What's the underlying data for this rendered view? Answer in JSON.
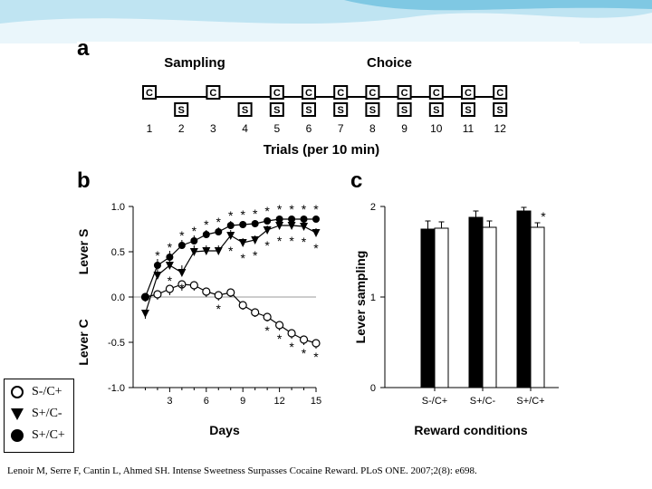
{
  "colors": {
    "banner_light": "#eaf6fb",
    "banner_mid": "#bfe4f2",
    "banner_dark": "#7fc8e3"
  },
  "panel_a": {
    "letter": "a",
    "sampling_label": "Sampling",
    "choice_label": "Choice",
    "xlabel": "Trials (per 10 min)",
    "trials": [
      {
        "n": "1",
        "box": "C"
      },
      {
        "n": "2",
        "box": "S"
      },
      {
        "n": "3",
        "box": "C"
      },
      {
        "n": "4",
        "box": "S"
      },
      {
        "n": "5",
        "box": "CS"
      },
      {
        "n": "6",
        "box": "CS"
      },
      {
        "n": "7",
        "box": "CS"
      },
      {
        "n": "8",
        "box": "CS"
      },
      {
        "n": "9",
        "box": "CS"
      },
      {
        "n": "10",
        "box": "CS"
      },
      {
        "n": "11",
        "box": "CS"
      },
      {
        "n": "12",
        "box": "CS"
      }
    ],
    "box_c": "C",
    "box_s": "S"
  },
  "chart_data": [
    {
      "type": "line",
      "panel": "b",
      "title": "",
      "xlabel": "Days",
      "ylabel_top": "Lever S",
      "ylabel_bottom": "Lever C",
      "xlim": [
        0,
        15
      ],
      "ylim": [
        -1.0,
        1.0
      ],
      "xticks": [
        "3",
        "6",
        "9",
        "12",
        "15"
      ],
      "yticks": [
        "1.0",
        "0.5",
        "0.0",
        "-0.5",
        "-1.0"
      ],
      "x": [
        1,
        2,
        3,
        4,
        5,
        6,
        7,
        8,
        9,
        10,
        11,
        12,
        13,
        14,
        15
      ],
      "series": [
        {
          "name": "S+/C+",
          "marker": "filled-circle",
          "values": [
            0.0,
            0.35,
            0.44,
            0.57,
            0.62,
            0.69,
            0.72,
            0.79,
            0.8,
            0.81,
            0.84,
            0.86,
            0.86,
            0.86,
            0.86
          ],
          "errors": [
            0.05,
            0.07,
            0.07,
            0.06,
            0.06,
            0.05,
            0.05,
            0.05,
            0.04,
            0.04,
            0.04,
            0.04,
            0.04,
            0.04,
            0.04
          ],
          "stars": [
            0,
            1,
            1,
            1,
            1,
            1,
            1,
            1,
            1,
            1,
            1,
            1,
            1,
            1,
            1
          ]
        },
        {
          "name": "S+/C-",
          "marker": "filled-triangle-down",
          "values": [
            -0.18,
            0.24,
            0.35,
            0.27,
            0.5,
            0.51,
            0.51,
            0.68,
            0.6,
            0.63,
            0.74,
            0.79,
            0.79,
            0.78,
            0.71
          ],
          "errors": [
            0.06,
            0.07,
            0.07,
            0.08,
            0.07,
            0.06,
            0.06,
            0.06,
            0.05,
            0.05,
            0.05,
            0.05,
            0.05,
            0.05,
            0.05
          ],
          "stars": [
            0,
            0,
            1,
            1,
            0,
            0,
            0,
            1,
            1,
            1,
            1,
            1,
            1,
            1,
            1
          ]
        },
        {
          "name": "S-/C+",
          "marker": "open-circle",
          "values": [
            0.0,
            0.03,
            0.09,
            0.14,
            0.13,
            0.06,
            0.02,
            0.05,
            -0.09,
            -0.17,
            -0.22,
            -0.31,
            -0.4,
            -0.47,
            -0.51
          ],
          "errors": [
            0.05,
            0.06,
            0.07,
            0.07,
            0.06,
            0.06,
            0.06,
            0.05,
            0.05,
            0.05,
            0.05,
            0.06,
            0.06,
            0.06,
            0.06
          ],
          "stars": [
            0,
            0,
            0,
            0,
            0,
            0,
            1,
            0,
            0,
            0,
            1,
            1,
            1,
            1,
            1
          ]
        }
      ]
    },
    {
      "type": "bar",
      "panel": "c",
      "title": "",
      "xlabel": "Reward conditions",
      "ylabel": "Lever sampling",
      "ylim": [
        0,
        2
      ],
      "yticks": [
        "2",
        "1",
        "0"
      ],
      "categories": [
        "S-/C+",
        "S+/C-",
        "S+/C+"
      ],
      "series": [
        {
          "name": "Lever S",
          "color": "#000000",
          "values": [
            1.75,
            1.88,
            1.95
          ],
          "errors": [
            0.09,
            0.07,
            0.04
          ]
        },
        {
          "name": "Lever C",
          "color": "#ffffff",
          "values": [
            1.76,
            1.77,
            1.77
          ],
          "errors": [
            0.07,
            0.07,
            0.05
          ]
        }
      ],
      "annotation": "*"
    }
  ],
  "panel_b_letter": "b",
  "panel_c_letter": "c",
  "star_symbol": "*",
  "legend": [
    {
      "label": "S-/C+",
      "marker": "open-circle"
    },
    {
      "label": "S+/C-",
      "marker": "filled-triangle-down"
    },
    {
      "label": "S+/C+",
      "marker": "filled-circle"
    }
  ],
  "citation": "Lenoir M, Serre F, Cantin L, Ahmed SH. Intense Sweetness Surpasses Cocaine Reward. PLoS ONE. 2007;2(8): e698."
}
